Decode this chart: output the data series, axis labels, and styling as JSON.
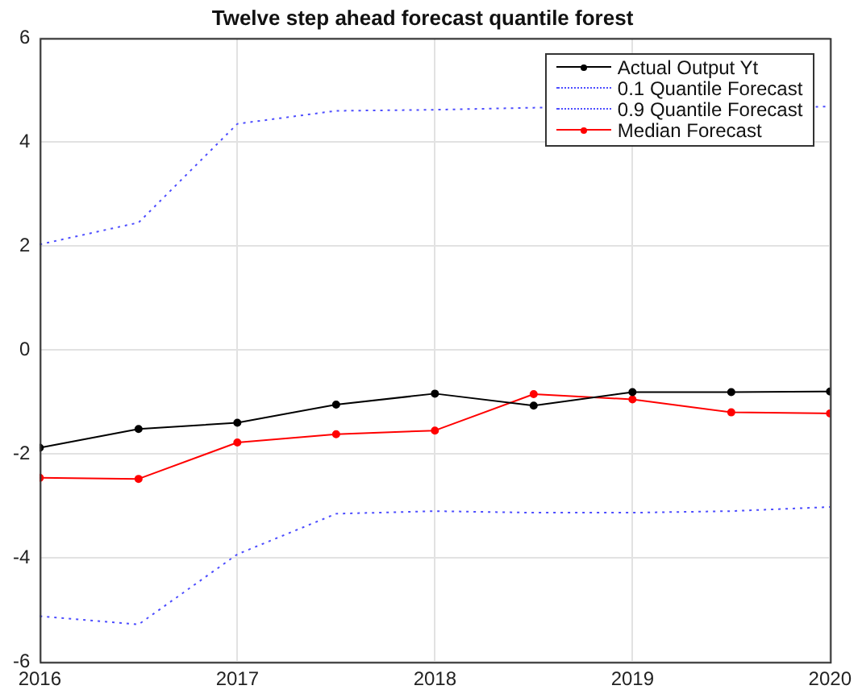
{
  "chart_data": {
    "type": "line",
    "title": "Twelve step ahead forecast quantile forest",
    "x": [
      2016,
      2016.5,
      2017,
      2017.5,
      2018,
      2018.5,
      2019,
      2019.5,
      2020
    ],
    "series": [
      {
        "name": "Actual Output Yt",
        "color": "#000000",
        "marker": "circle",
        "line_style": "solid",
        "values": [
          -1.88,
          -1.52,
          -1.4,
          -1.05,
          -0.84,
          -1.07,
          -0.81,
          -0.81,
          -0.8
        ]
      },
      {
        "name": "0.1 Quantile Forecast",
        "color": "#4d4dff",
        "marker": "none",
        "line_style": "dotted",
        "values": [
          -5.12,
          -5.28,
          -3.93,
          -3.15,
          -3.1,
          -3.13,
          -3.13,
          -3.1,
          -3.02
        ]
      },
      {
        "name": "0.9 Quantile Forecast",
        "color": "#4d4dff",
        "marker": "none",
        "line_style": "dotted",
        "values": [
          2.03,
          2.45,
          4.35,
          4.6,
          4.62,
          4.66,
          null,
          null,
          4.68
        ]
      },
      {
        "name": "Median Forecast",
        "color": "#ff0000",
        "marker": "circle",
        "line_style": "solid",
        "values": [
          -2.46,
          -2.48,
          -1.78,
          -1.62,
          -1.55,
          -0.85,
          -0.95,
          -1.2,
          -1.22
        ]
      }
    ],
    "xlim": [
      2016,
      2020
    ],
    "xticks": [
      2016,
      2017,
      2018,
      2019,
      2020
    ],
    "ylim": [
      -6,
      6
    ],
    "yticks": [
      -6,
      -4,
      -2,
      0,
      2,
      4,
      6
    ],
    "grid": true,
    "legend": "top right"
  }
}
